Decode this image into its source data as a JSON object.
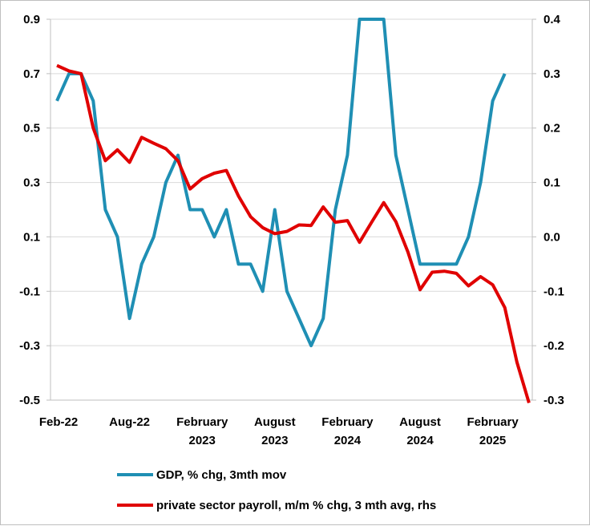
{
  "chart_data": {
    "type": "line",
    "title": "",
    "x_tick_labels": [
      {
        "index": 0,
        "lines": [
          "Feb-22"
        ]
      },
      {
        "index": 6,
        "lines": [
          "Aug-22"
        ]
      },
      {
        "index": 12,
        "lines": [
          "February",
          "2023"
        ]
      },
      {
        "index": 18,
        "lines": [
          "August",
          "2023"
        ]
      },
      {
        "index": 24,
        "lines": [
          "February",
          "2024"
        ]
      },
      {
        "index": 30,
        "lines": [
          "August",
          "2024"
        ]
      },
      {
        "index": 36,
        "lines": [
          "February",
          "2025"
        ]
      }
    ],
    "y_left": {
      "min": -0.5,
      "max": 0.9,
      "ticks": [
        -0.5,
        -0.3,
        -0.1,
        0.1,
        0.3,
        0.5,
        0.7,
        0.9
      ],
      "labels": [
        "-0.5",
        "-0.3",
        "-0.1",
        "0.1",
        "0.3",
        "0.5",
        "0.7",
        "0.9"
      ]
    },
    "y_right": {
      "min": -0.3,
      "max": 0.4,
      "ticks": [
        -0.3,
        -0.2,
        -0.1,
        0.0,
        0.1,
        0.2,
        0.3,
        0.4
      ],
      "labels": [
        "-0.3",
        "-0.2",
        "-0.1",
        "0.0",
        "0.1",
        "0.2",
        "0.3",
        "0.4"
      ]
    },
    "grid": true,
    "legend_position": "bottom",
    "series": [
      {
        "name": "GDP, % chg, 3mth mov",
        "axis": "left",
        "color": "#1f8fb4",
        "x": [
          0,
          1,
          2,
          3,
          4,
          5,
          6,
          7,
          8,
          9,
          10,
          11,
          12,
          13,
          14,
          15,
          16,
          17,
          18,
          19,
          20,
          21,
          22,
          23,
          24,
          25,
          26,
          27,
          28,
          29,
          30,
          31,
          32,
          33,
          34,
          35,
          36,
          37
        ],
        "values": [
          0.6,
          0.7,
          0.7,
          0.6,
          0.2,
          0.1,
          -0.2,
          0.0,
          0.1,
          0.3,
          0.4,
          0.2,
          0.2,
          0.1,
          0.2,
          0.0,
          0.0,
          -0.1,
          0.2,
          -0.1,
          -0.2,
          -0.3,
          -0.2,
          0.2,
          0.4,
          0.9,
          0.9,
          0.9,
          0.4,
          0.2,
          0.0,
          0.0,
          0.0,
          0.0,
          0.1,
          0.3,
          0.6,
          0.7
        ]
      },
      {
        "name": "private sector payroll, m/m % chg, 3 mth avg, rhs",
        "axis": "right",
        "color": "#e00000",
        "x": [
          0,
          1,
          2,
          3,
          4,
          5,
          6,
          7,
          8,
          9,
          10,
          11,
          12,
          13,
          14,
          15,
          16,
          17,
          18,
          19,
          20,
          21,
          22,
          23,
          24,
          25,
          26,
          27,
          28,
          29,
          30,
          31,
          32,
          33,
          34,
          35,
          36,
          37,
          38,
          39
        ],
        "values": [
          0.315,
          0.305,
          0.3,
          0.2,
          0.14,
          0.16,
          0.137,
          0.183,
          0.172,
          0.162,
          0.14,
          0.088,
          0.107,
          0.117,
          0.122,
          0.075,
          0.037,
          0.017,
          0.006,
          0.01,
          0.022,
          0.021,
          0.055,
          0.027,
          0.03,
          -0.01,
          0.027,
          0.063,
          0.028,
          -0.028,
          -0.097,
          -0.065,
          -0.063,
          -0.067,
          -0.09,
          -0.073,
          -0.088,
          -0.13,
          -0.23,
          -0.305
        ]
      }
    ]
  }
}
